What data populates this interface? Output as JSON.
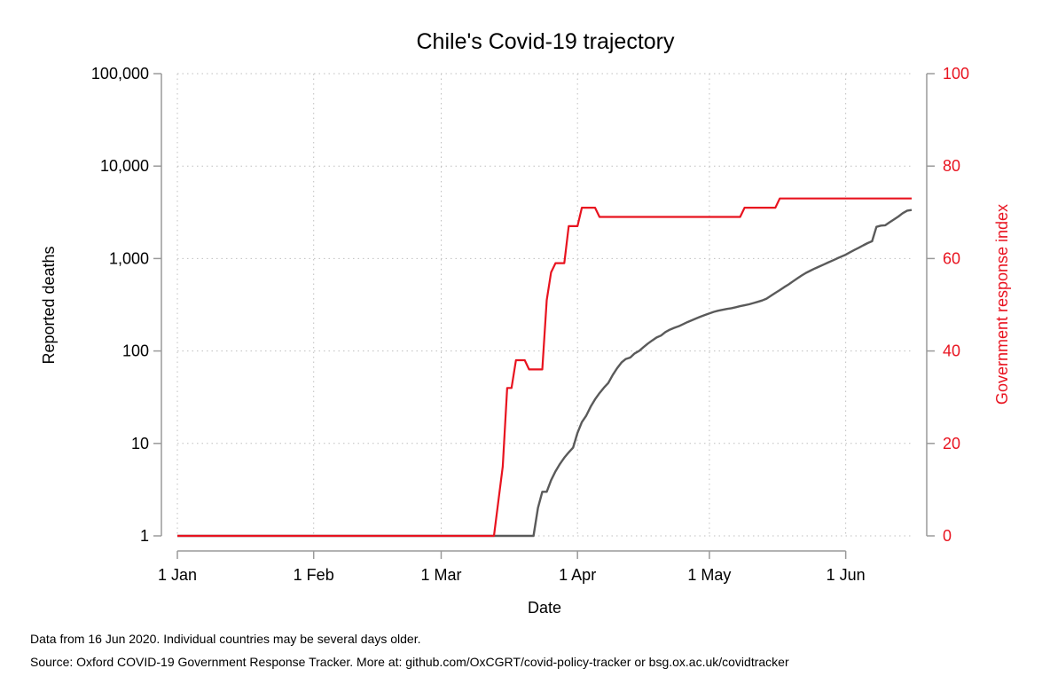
{
  "chart_data": {
    "type": "line",
    "title": "Chile's Covid-19 trajectory",
    "xlabel": "Date",
    "ylabel": "Reported deaths",
    "y2label": "Government response index",
    "x_ticks": [
      {
        "day": 1,
        "label": "1 Jan"
      },
      {
        "day": 32,
        "label": "1 Feb"
      },
      {
        "day": 61,
        "label": "1 Mar"
      },
      {
        "day": 92,
        "label": "1 Apr"
      },
      {
        "day": 122,
        "label": "1 May"
      },
      {
        "day": 153,
        "label": "1 Jun"
      }
    ],
    "xlim": [
      1,
      168
    ],
    "y_scale": "log",
    "ylim": [
      1,
      100000
    ],
    "y_ticks": [
      {
        "value": 1,
        "label": "1"
      },
      {
        "value": 10,
        "label": "10"
      },
      {
        "value": 100,
        "label": "100"
      },
      {
        "value": 1000,
        "label": "1,000"
      },
      {
        "value": 10000,
        "label": "10,000"
      },
      {
        "value": 100000,
        "label": "100,000"
      }
    ],
    "y2lim": [
      0,
      100
    ],
    "y2_ticks": [
      {
        "value": 0,
        "label": "0"
      },
      {
        "value": 20,
        "label": "20"
      },
      {
        "value": 40,
        "label": "40"
      },
      {
        "value": 60,
        "label": "60"
      },
      {
        "value": 80,
        "label": "80"
      },
      {
        "value": 100,
        "label": "100"
      }
    ],
    "grid": true,
    "colors": {
      "deaths": "#5a5a5a",
      "response": "#e8131f",
      "axis": "#9a9a9a",
      "grid": "#bfbfbf"
    },
    "series": [
      {
        "key": "deaths",
        "axis": "left",
        "points": [
          [
            1,
            1
          ],
          [
            82,
            1
          ],
          [
            83,
            2
          ],
          [
            84,
            3
          ],
          [
            85,
            3
          ],
          [
            86,
            4
          ],
          [
            87,
            5
          ],
          [
            88,
            6
          ],
          [
            89,
            7
          ],
          [
            90,
            8
          ],
          [
            91,
            9
          ],
          [
            92,
            13
          ],
          [
            93,
            17
          ],
          [
            94,
            20
          ],
          [
            95,
            25
          ],
          [
            96,
            30
          ],
          [
            97,
            35
          ],
          [
            98,
            40
          ],
          [
            99,
            45
          ],
          [
            100,
            55
          ],
          [
            101,
            65
          ],
          [
            102,
            75
          ],
          [
            103,
            82
          ],
          [
            104,
            85
          ],
          [
            105,
            94
          ],
          [
            106,
            100
          ],
          [
            107,
            110
          ],
          [
            108,
            120
          ],
          [
            109,
            130
          ],
          [
            110,
            140
          ],
          [
            111,
            147
          ],
          [
            112,
            160
          ],
          [
            113,
            170
          ],
          [
            114,
            178
          ],
          [
            115,
            185
          ],
          [
            116,
            195
          ],
          [
            117,
            205
          ],
          [
            118,
            215
          ],
          [
            119,
            225
          ],
          [
            120,
            235
          ],
          [
            121,
            245
          ],
          [
            122,
            255
          ],
          [
            123,
            265
          ],
          [
            124,
            273
          ],
          [
            125,
            279
          ],
          [
            126,
            285
          ],
          [
            127,
            290
          ],
          [
            128,
            297
          ],
          [
            129,
            305
          ],
          [
            130,
            312
          ],
          [
            131,
            320
          ],
          [
            132,
            330
          ],
          [
            133,
            340
          ],
          [
            134,
            352
          ],
          [
            135,
            368
          ],
          [
            136,
            395
          ],
          [
            137,
            425
          ],
          [
            138,
            455
          ],
          [
            139,
            490
          ],
          [
            140,
            525
          ],
          [
            141,
            565
          ],
          [
            142,
            610
          ],
          [
            143,
            655
          ],
          [
            144,
            700
          ],
          [
            145,
            740
          ],
          [
            146,
            780
          ],
          [
            147,
            820
          ],
          [
            148,
            860
          ],
          [
            149,
            905
          ],
          [
            150,
            950
          ],
          [
            151,
            1000
          ],
          [
            152,
            1050
          ],
          [
            153,
            1100
          ],
          [
            154,
            1170
          ],
          [
            155,
            1240
          ],
          [
            156,
            1310
          ],
          [
            157,
            1390
          ],
          [
            158,
            1470
          ],
          [
            159,
            1540
          ],
          [
            160,
            2200
          ],
          [
            161,
            2270
          ],
          [
            162,
            2290
          ],
          [
            163,
            2470
          ],
          [
            164,
            2650
          ],
          [
            165,
            2850
          ],
          [
            166,
            3100
          ],
          [
            167,
            3300
          ],
          [
            168,
            3350
          ]
        ]
      },
      {
        "key": "response",
        "axis": "right",
        "points": [
          [
            1,
            0
          ],
          [
            73,
            0
          ],
          [
            75,
            15
          ],
          [
            76,
            32
          ],
          [
            77,
            32
          ],
          [
            78,
            38
          ],
          [
            79,
            38
          ],
          [
            80,
            38
          ],
          [
            81,
            36
          ],
          [
            82,
            36
          ],
          [
            83,
            36
          ],
          [
            84,
            36
          ],
          [
            85,
            51
          ],
          [
            86,
            57
          ],
          [
            87,
            59
          ],
          [
            88,
            59
          ],
          [
            89,
            59
          ],
          [
            90,
            67
          ],
          [
            91,
            67
          ],
          [
            92,
            67
          ],
          [
            93,
            71
          ],
          [
            94,
            71
          ],
          [
            95,
            71
          ],
          [
            96,
            71
          ],
          [
            97,
            69
          ],
          [
            98,
            69
          ],
          [
            128,
            69
          ],
          [
            129,
            69
          ],
          [
            130,
            71
          ],
          [
            131,
            71
          ],
          [
            137,
            71
          ],
          [
            138,
            73
          ],
          [
            139,
            73
          ],
          [
            168,
            73
          ]
        ]
      }
    ]
  },
  "footnotes": {
    "line1": "Data from 16 Jun 2020. Individual countries may be several days older.",
    "line2": "Source: Oxford COVID-19 Government Response Tracker. More at: github.com/OxCGRT/covid-policy-tracker or bsg.ox.ac.uk/covidtracker"
  }
}
